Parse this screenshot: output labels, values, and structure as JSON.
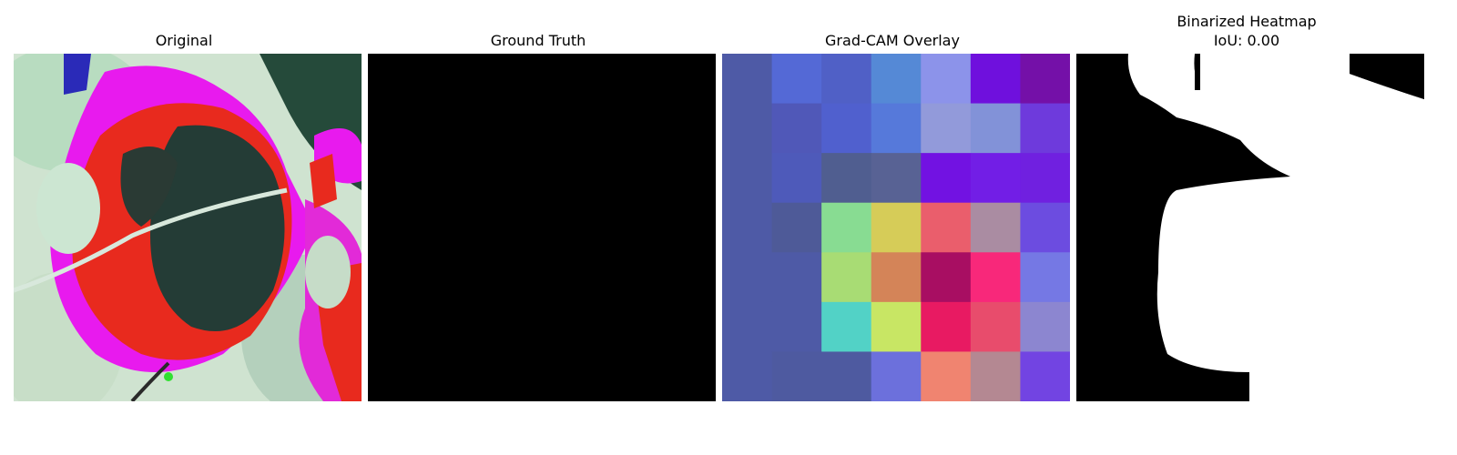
{
  "panels": [
    {
      "title": "Original"
    },
    {
      "title": "Ground Truth"
    },
    {
      "title": "Grad-CAM Overlay"
    },
    {
      "title": "Binarized Heatmap",
      "subtitle": "IoU: 0.00"
    }
  ],
  "gradcam_grid": [
    [
      "#4e5aa6",
      "#5469d6",
      "#5060c6",
      "#5589d6",
      "#8c93ea",
      "#6f10dd",
      "#7410a8"
    ],
    [
      "#4e5aa6",
      "#5058b8",
      "#5060ce",
      "#5679da",
      "#929ada",
      "#8292d8",
      "#6e3adc"
    ],
    [
      "#4e5aa6",
      "#4e5aba",
      "#505e90",
      "#586294",
      "#7212e2",
      "#721ee6",
      "#7020e0"
    ],
    [
      "#4e5aa6",
      "#4e5a98",
      "#88dc92",
      "#d6cc58",
      "#ea5e6c",
      "#aa8ca2",
      "#6c4ce0"
    ],
    [
      "#4e5aa6",
      "#4e5aa6",
      "#a8dc74",
      "#d48458",
      "#a80e62",
      "#f8287a",
      "#7578e4"
    ],
    [
      "#4e5aa6",
      "#4e5aa6",
      "#52d2c6",
      "#c8e664",
      "#e81a62",
      "#e84c6c",
      "#8c86d0"
    ],
    [
      "#4e5aa6",
      "#4e5aa0",
      "#4e5aa0",
      "#6c70dc",
      "#f08470",
      "#b48892",
      "#7244e2"
    ]
  ]
}
